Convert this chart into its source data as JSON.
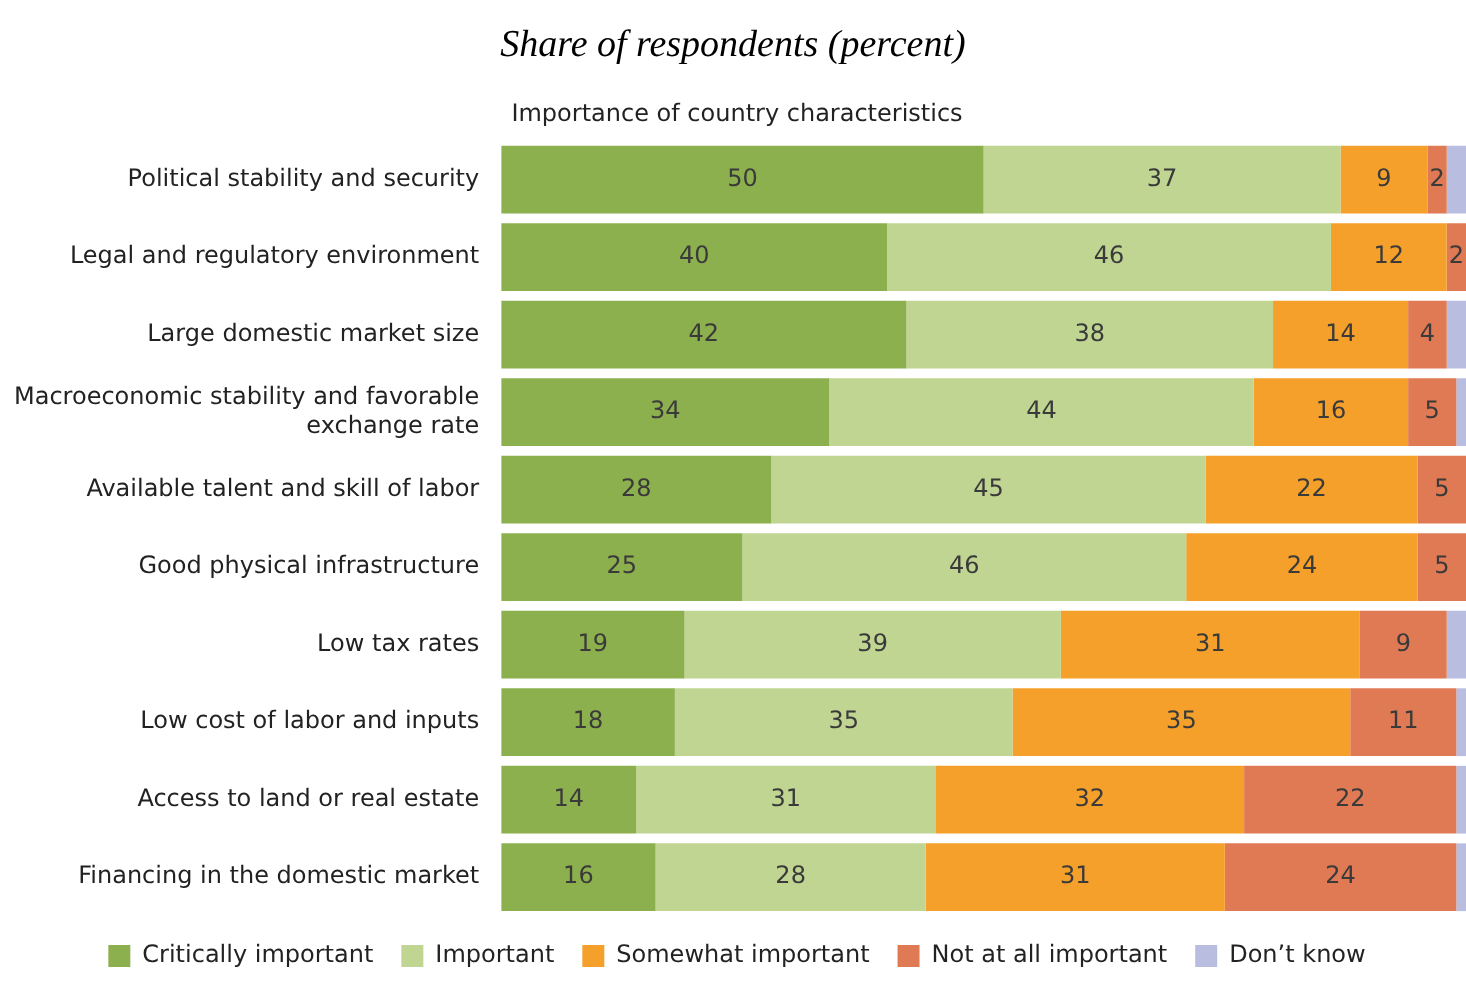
{
  "chart_data": {
    "type": "bar",
    "orientation": "horizontal",
    "stacked": true,
    "title": "Share of respondents (percent)",
    "subtitle": "Importance of country characteristics",
    "categories": [
      "Political stability and security",
      "Legal and regulatory environment",
      "Large domestic market size",
      "Macroeconomic stability and favorable exchange rate",
      "Available talent and skill of labor",
      "Good physical infrastructure",
      "Low tax rates",
      "Low cost of labor and inputs",
      "Access to land or real estate",
      "Financing in the domestic market"
    ],
    "series": [
      {
        "name": "Critically important",
        "color": "#8db04f",
        "values": [
          50,
          40,
          42,
          34,
          28,
          25,
          19,
          18,
          14,
          16
        ],
        "value_labels": [
          "50",
          "40",
          "42",
          "34",
          "28",
          "25",
          "19",
          "18",
          "14",
          "16"
        ]
      },
      {
        "name": "Important",
        "color": "#bfd591",
        "values": [
          37,
          46,
          38,
          44,
          45,
          46,
          39,
          35,
          31,
          28
        ],
        "value_labels": [
          "37",
          "46",
          "38",
          "44",
          "45",
          "46",
          "39",
          "35",
          "31",
          "28"
        ]
      },
      {
        "name": "Somewhat important",
        "color": "#f5a02a",
        "values": [
          9,
          12,
          14,
          16,
          22,
          24,
          31,
          35,
          32,
          31
        ],
        "value_labels": [
          "9",
          "12",
          "14",
          "16",
          "22",
          "24",
          "31",
          "35",
          "32",
          "31"
        ]
      },
      {
        "name": "Not at all important",
        "color": "#e07a54",
        "values": [
          2,
          2,
          4,
          5,
          5,
          5,
          9,
          11,
          22,
          24
        ],
        "value_labels": [
          "2",
          "2",
          "4",
          "5",
          "5",
          "5",
          "9",
          "11",
          "22",
          "24"
        ]
      },
      {
        "name": "Don’t know",
        "color": "#b9bde0",
        "values": [
          2,
          0,
          2,
          1,
          0,
          0,
          2,
          1,
          1,
          1
        ],
        "value_labels": [
          null,
          null,
          null,
          null,
          null,
          null,
          null,
          null,
          null,
          null
        ]
      }
    ],
    "legend": "bottom"
  }
}
